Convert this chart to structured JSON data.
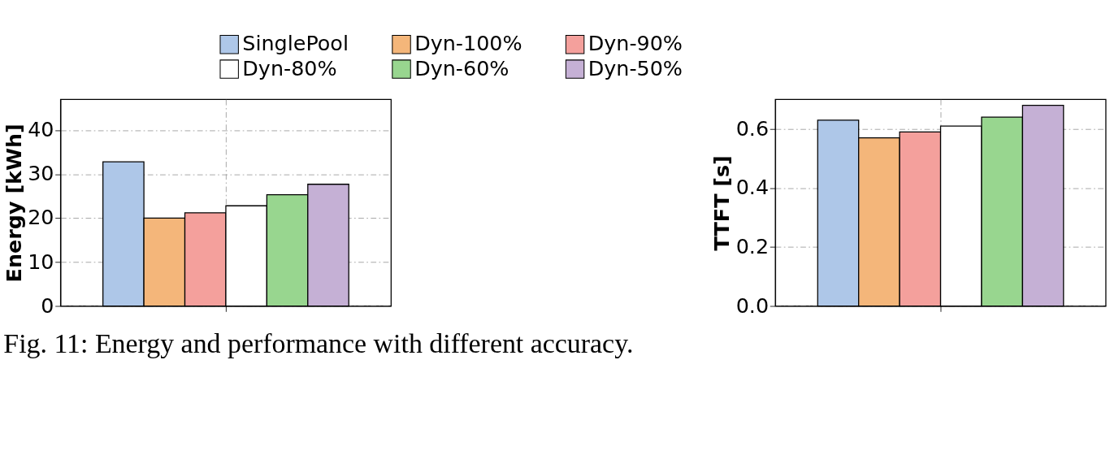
{
  "chart_data": [
    {
      "type": "bar",
      "categories": [
        null
      ],
      "ylabel": "Energy [kWh]",
      "ylim": [
        0,
        47
      ],
      "yticks": [
        0,
        10,
        20,
        30,
        40
      ],
      "grid": true,
      "legend": "top",
      "series": [
        {
          "name": "SinglePool",
          "color": "#aec7e8",
          "values": [
            32.8
          ]
        },
        {
          "name": "Dyn-100%",
          "color": "#f4b67a",
          "values": [
            20.0
          ]
        },
        {
          "name": "Dyn-90%",
          "color": "#f4a09c",
          "values": [
            21.2
          ]
        },
        {
          "name": "Dyn-80%",
          "color": "#ffffff",
          "values": [
            22.8
          ]
        },
        {
          "name": "Dyn-60%",
          "color": "#98d68f",
          "values": [
            25.3
          ]
        },
        {
          "name": "Dyn-50%",
          "color": "#c5b0d5",
          "values": [
            27.7
          ]
        }
      ]
    },
    {
      "type": "bar",
      "categories": [
        null
      ],
      "ylabel": "TTFT [s]",
      "ylim": [
        0,
        0.7
      ],
      "yticks": [
        {
          "value": 0,
          "label": "0.0"
        },
        0.2,
        0.4,
        0.6
      ],
      "grid": true,
      "annotations": [
        "Fig. 11: Energy and performance with different accuracy."
      ],
      "series": [
        {
          "name": "SinglePool",
          "color": "#aec7e8",
          "values": [
            0.63
          ]
        },
        {
          "name": "Dyn-100%",
          "color": "#f4b67a",
          "values": [
            0.57
          ]
        },
        {
          "name": "Dyn-90%",
          "color": "#f4a09c",
          "values": [
            0.59
          ]
        },
        {
          "name": "Dyn-80%",
          "color": "#ffffff",
          "values": [
            0.61
          ]
        },
        {
          "name": "Dyn-60%",
          "color": "#98d68f",
          "values": [
            0.64
          ]
        },
        {
          "name": "Dyn-50%",
          "color": "#c5b0d5",
          "values": [
            0.68
          ]
        }
      ]
    }
  ]
}
